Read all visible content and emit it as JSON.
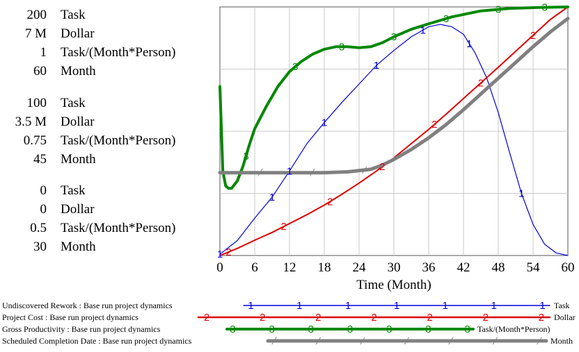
{
  "chart_data": {
    "type": "line",
    "xlabel": "Time (Month)",
    "x_ticks": [
      0,
      6,
      12,
      18,
      24,
      30,
      36,
      42,
      48,
      54,
      60
    ],
    "xlim": [
      0,
      60
    ],
    "grid": true,
    "axes": [
      {
        "unit": "Task",
        "ticks": [
          "200",
          "100",
          "0"
        ],
        "range": [
          0,
          200
        ]
      },
      {
        "unit": "Dollar",
        "ticks": [
          "7 M",
          "3.5 M",
          "0"
        ],
        "range": [
          0,
          7000000
        ]
      },
      {
        "unit": "Task/(Month*Person)",
        "ticks": [
          "1",
          "0.75",
          "0.5"
        ],
        "range": [
          0.5,
          1
        ]
      },
      {
        "unit": "Month",
        "ticks": [
          "60",
          "45",
          "30"
        ],
        "range": [
          30,
          60
        ]
      }
    ],
    "series": [
      {
        "id": "1",
        "name": "Undiscovered Rework : Base run project dynamics",
        "unit": "Task",
        "color": "#0000dd",
        "axis": 0,
        "x": [
          0,
          3,
          6,
          9,
          12,
          15,
          18,
          21,
          24,
          27,
          30,
          33,
          36,
          38,
          40,
          42,
          44,
          46,
          48,
          50,
          52,
          54,
          56,
          58,
          59,
          60
        ],
        "y": [
          1,
          12,
          30,
          47,
          68,
          90,
          107,
          123,
          138,
          153,
          165,
          176,
          184,
          186,
          184,
          178,
          163,
          143,
          115,
          82,
          50,
          25,
          9,
          2,
          1,
          0
        ]
      },
      {
        "id": "2",
        "name": "Project Cost : Base run project dynamics",
        "unit": "Dollar",
        "color": "#dd0000",
        "axis": 1,
        "x": [
          0,
          3,
          6,
          9,
          12,
          15,
          18,
          21,
          24,
          27,
          30,
          33,
          36,
          39,
          42,
          45,
          48,
          51,
          54,
          57,
          60
        ],
        "y": [
          0,
          200000,
          430000,
          650000,
          900000,
          1150000,
          1420000,
          1720000,
          2040000,
          2380000,
          2750000,
          3150000,
          3550000,
          3980000,
          4420000,
          4860000,
          5300000,
          5750000,
          6200000,
          6650000,
          7000000
        ]
      },
      {
        "id": "3",
        "name": "Gross Productivity : Base run project dynamics",
        "unit": "Task/(Month*Person)",
        "color": "#008800",
        "axis": 2,
        "x": [
          0,
          0.5,
          1,
          1.5,
          2,
          3,
          4,
          5,
          6,
          8,
          10,
          12,
          14,
          16,
          18,
          20,
          22,
          24,
          26,
          28,
          30,
          33,
          36,
          40,
          45,
          50,
          55,
          60
        ],
        "y": [
          0.84,
          0.67,
          0.64,
          0.635,
          0.635,
          0.65,
          0.68,
          0.72,
          0.755,
          0.8,
          0.84,
          0.87,
          0.89,
          0.905,
          0.915,
          0.92,
          0.92,
          0.918,
          0.92,
          0.928,
          0.94,
          0.955,
          0.966,
          0.98,
          0.992,
          0.997,
          0.999,
          1.0
        ]
      },
      {
        "id": "4",
        "name": "Scheduled Completion Date : Base run project dynamics",
        "unit": "Month",
        "color": "#808080",
        "axis": 3,
        "x": [
          0,
          6,
          12,
          18,
          22,
          26,
          28,
          30,
          33,
          36,
          39,
          42,
          45,
          48,
          51,
          54,
          57,
          60
        ],
        "y": [
          40,
          40,
          40,
          40,
          40.1,
          40.4,
          40.9,
          41.6,
          42.8,
          44.2,
          45.8,
          47.6,
          49.5,
          51.4,
          53.3,
          55.2,
          57.0,
          58.6
        ]
      }
    ]
  }
}
